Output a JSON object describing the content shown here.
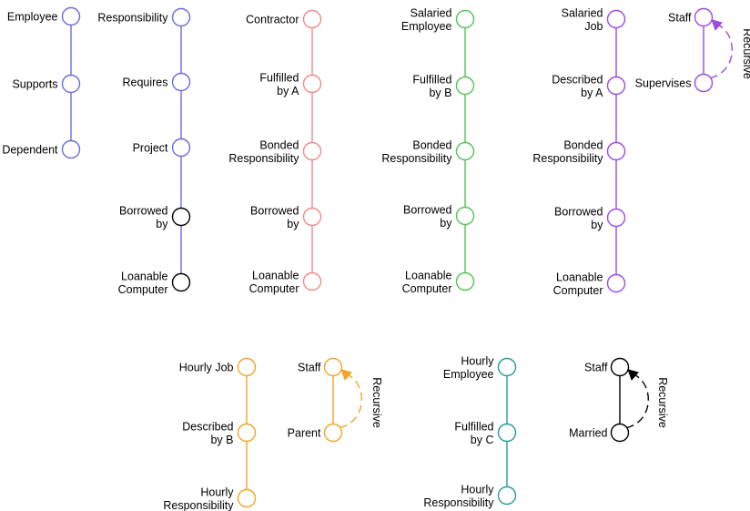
{
  "colors": {
    "blue": "#6b6bdc",
    "red": "#ef8a8a",
    "green": "#53c453",
    "purple": "#9c4ae0",
    "orange": "#f0a528",
    "teal": "#269a9a",
    "black": "#000000"
  },
  "chains": [
    {
      "id": "employee-supports",
      "color": "blue",
      "nodes": [
        {
          "label": [
            "Employee"
          ]
        },
        {
          "label": [
            "Supports"
          ]
        },
        {
          "label": [
            "Dependent"
          ]
        }
      ]
    },
    {
      "id": "responsibility-loan",
      "color": "blue",
      "nodes": [
        {
          "label": [
            "Responsibility"
          ]
        },
        {
          "label": [
            "Requires"
          ]
        },
        {
          "label": [
            "Project"
          ]
        },
        {
          "label": [
            "Borrowed",
            "by"
          ],
          "color": "black"
        },
        {
          "label": [
            "Loanable",
            "Computer"
          ],
          "color": "black"
        }
      ]
    },
    {
      "id": "contractor",
      "color": "red",
      "nodes": [
        {
          "label": [
            "Contractor"
          ]
        },
        {
          "label": [
            "Fulfilled",
            "by A"
          ]
        },
        {
          "label": [
            "Bonded",
            "Responsibility"
          ]
        },
        {
          "label": [
            "Borrowed",
            "by"
          ]
        },
        {
          "label": [
            "Loanable",
            "Computer"
          ]
        }
      ]
    },
    {
      "id": "salaried-employee",
      "color": "green",
      "nodes": [
        {
          "label": [
            "Salaried",
            "Employee"
          ]
        },
        {
          "label": [
            "Fulfilled",
            "by B"
          ]
        },
        {
          "label": [
            "Bonded",
            "Responsibility"
          ]
        },
        {
          "label": [
            "Borrowed",
            "by"
          ]
        },
        {
          "label": [
            "Loanable",
            "Computer"
          ]
        }
      ]
    },
    {
      "id": "salaried-job",
      "color": "purple",
      "nodes": [
        {
          "label": [
            "Salaried",
            "Job"
          ]
        },
        {
          "label": [
            "Described",
            "by A"
          ]
        },
        {
          "label": [
            "Bonded",
            "Responsibility"
          ]
        },
        {
          "label": [
            "Borrowed",
            "by"
          ]
        },
        {
          "label": [
            "Loanable",
            "Computer"
          ]
        }
      ]
    },
    {
      "id": "hourly-job",
      "color": "orange",
      "nodes": [
        {
          "label": [
            "Hourly Job"
          ]
        },
        {
          "label": [
            "Described",
            "by B"
          ]
        },
        {
          "label": [
            "Hourly",
            "Responsibility"
          ]
        }
      ]
    },
    {
      "id": "hourly-employee",
      "color": "teal",
      "nodes": [
        {
          "label": [
            "Hourly",
            "Employee"
          ]
        },
        {
          "label": [
            "Fulfilled",
            "by C"
          ]
        },
        {
          "label": [
            "Hourly",
            "Responsibility"
          ]
        }
      ]
    }
  ],
  "recursive": [
    {
      "id": "staff-supervises",
      "color": "purple",
      "top": "Staff",
      "bottom": "Supervises",
      "label": "Recursive"
    },
    {
      "id": "staff-parent",
      "color": "orange",
      "top": "Staff",
      "bottom": "Parent",
      "label": "Recursive"
    },
    {
      "id": "staff-married",
      "color": "black",
      "top": "Staff",
      "bottom": "Married",
      "label": "Recursive"
    }
  ]
}
